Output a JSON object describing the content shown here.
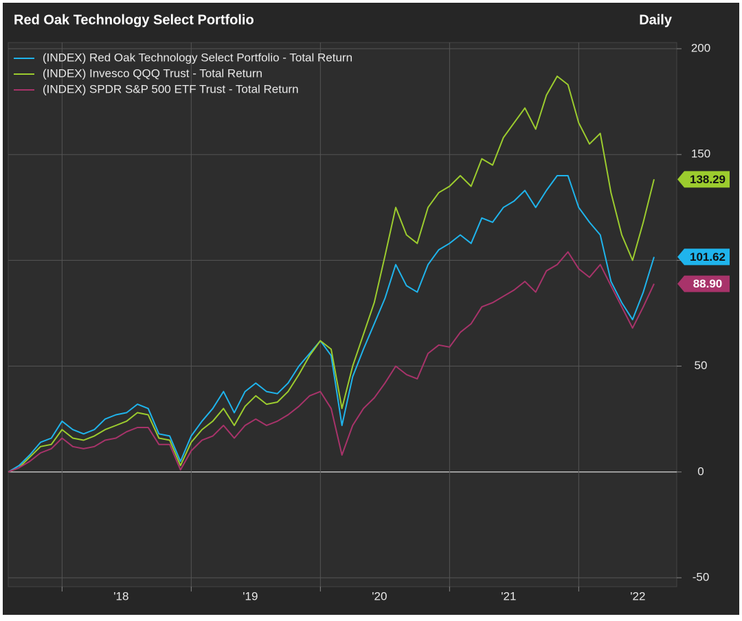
{
  "chart_data": {
    "type": "line",
    "title": "Red Oak Technology Select Portfolio",
    "subtitle": "Daily",
    "categories": [
      null,
      null,
      null,
      null,
      null,
      null,
      null,
      null,
      null,
      null,
      null,
      "'18",
      null,
      null,
      null,
      null,
      null,
      null,
      null,
      null,
      null,
      null,
      null,
      "'19",
      null,
      null,
      null,
      null,
      null,
      null,
      null,
      null,
      null,
      null,
      null,
      "'20",
      null,
      null,
      null,
      null,
      null,
      null,
      null,
      null,
      null,
      null,
      null,
      "'21",
      null,
      null,
      null,
      null,
      null,
      null,
      null,
      null,
      null,
      null,
      null,
      "'22",
      null
    ],
    "series": [
      {
        "name": "(INDEX) Red Oak Technology Select Portfolio - Total Return",
        "color": "#1fb4ec",
        "values": [
          0,
          3,
          8,
          14,
          16,
          24,
          20,
          18,
          20,
          25,
          27,
          28,
          32,
          30,
          18,
          17,
          5,
          17,
          24,
          30,
          38,
          28,
          38,
          42,
          38,
          37,
          42,
          50,
          56,
          62,
          55,
          22,
          45,
          58,
          70,
          82,
          98,
          88,
          85,
          98,
          105,
          108,
          112,
          108,
          120,
          118,
          125,
          128,
          133,
          125,
          133,
          140,
          140,
          125,
          118,
          112,
          90,
          80,
          72,
          85,
          101.62
        ],
        "value_labels": [
          null,
          null,
          null,
          null,
          null,
          null,
          null,
          null,
          null,
          null,
          null,
          null,
          null,
          null,
          null,
          null,
          null,
          null,
          null,
          null,
          null,
          null,
          null,
          null,
          null,
          null,
          null,
          null,
          null,
          null,
          null,
          null,
          null,
          null,
          null,
          null,
          null,
          null,
          null,
          null,
          null,
          null,
          null,
          null,
          null,
          null,
          null,
          null,
          null,
          null,
          null,
          null,
          null,
          null,
          null,
          null,
          null,
          null,
          null,
          null,
          "101.62"
        ]
      },
      {
        "name": "(INDEX) Invesco QQQ Trust - Total Return",
        "color": "#9ccc2e",
        "values": [
          0,
          2,
          7,
          12,
          13,
          20,
          16,
          15,
          17,
          20,
          22,
          24,
          28,
          27,
          16,
          15,
          3,
          14,
          20,
          24,
          30,
          22,
          31,
          36,
          32,
          33,
          38,
          46,
          55,
          62,
          58,
          30,
          50,
          65,
          80,
          102,
          125,
          112,
          108,
          125,
          132,
          135,
          140,
          135,
          148,
          145,
          158,
          165,
          172,
          162,
          178,
          187,
          183,
          165,
          155,
          160,
          132,
          112,
          100,
          118,
          138.29
        ],
        "value_labels": [
          null,
          null,
          null,
          null,
          null,
          null,
          null,
          null,
          null,
          null,
          null,
          null,
          null,
          null,
          null,
          null,
          null,
          null,
          null,
          null,
          null,
          null,
          null,
          null,
          null,
          null,
          null,
          null,
          null,
          null,
          null,
          null,
          null,
          null,
          null,
          null,
          null,
          null,
          null,
          null,
          null,
          null,
          null,
          null,
          null,
          null,
          null,
          null,
          null,
          null,
          null,
          null,
          null,
          null,
          null,
          null,
          null,
          null,
          null,
          null,
          "138.29"
        ]
      },
      {
        "name": "(INDEX) SPDR S&P 500 ETF Trust - Total Return",
        "color": "#a8336a",
        "values": [
          0,
          2,
          5,
          9,
          11,
          16,
          12,
          11,
          12,
          15,
          16,
          19,
          21,
          21,
          13,
          13,
          1,
          10,
          15,
          17,
          22,
          16,
          22,
          25,
          22,
          24,
          27,
          31,
          36,
          38,
          30,
          8,
          22,
          30,
          35,
          42,
          50,
          46,
          44,
          56,
          60,
          59,
          66,
          70,
          78,
          80,
          83,
          86,
          90,
          85,
          95,
          98,
          104,
          96,
          92,
          98,
          88,
          78,
          68,
          78,
          88.9
        ],
        "value_labels": [
          null,
          null,
          null,
          null,
          null,
          null,
          null,
          null,
          null,
          null,
          null,
          null,
          null,
          null,
          null,
          null,
          null,
          null,
          null,
          null,
          null,
          null,
          null,
          null,
          null,
          null,
          null,
          null,
          null,
          null,
          null,
          null,
          null,
          null,
          null,
          null,
          null,
          null,
          null,
          null,
          null,
          null,
          null,
          null,
          null,
          null,
          null,
          null,
          null,
          null,
          null,
          null,
          null,
          null,
          null,
          null,
          null,
          null,
          null,
          null,
          "88.90"
        ]
      }
    ],
    "ylim": [
      -50,
      200
    ],
    "yticks": [
      -50,
      0,
      50,
      100,
      150,
      200
    ],
    "grid": true,
    "legend": "top-left"
  }
}
